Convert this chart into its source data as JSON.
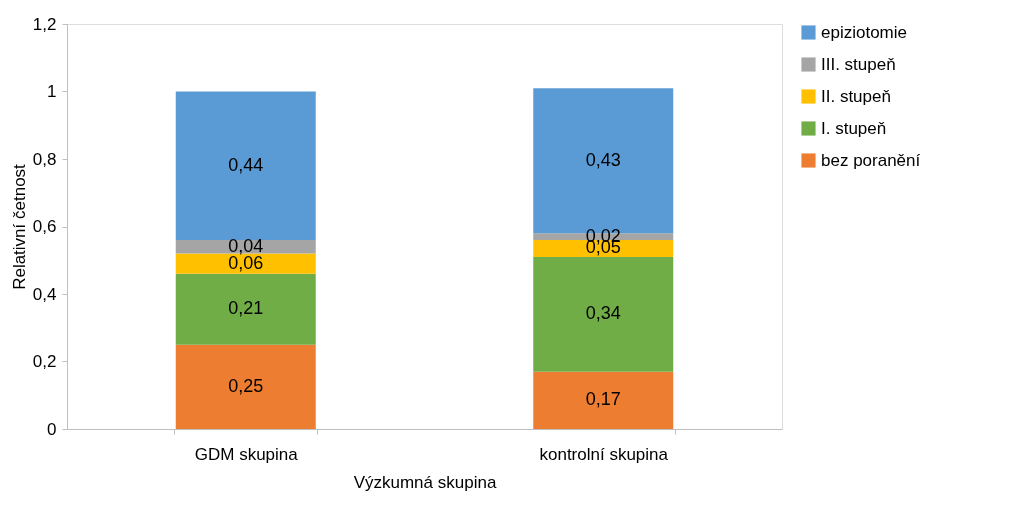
{
  "chart_data": {
    "type": "bar",
    "stacked": true,
    "xlabel": "Výzkumná skupina",
    "ylabel": "Relativní četnost",
    "categories": [
      "GDM skupina",
      "kontrolní skupina"
    ],
    "series": [
      {
        "name": "bez poranění",
        "color": "#ed7d31",
        "values": [
          0.25,
          0.17
        ],
        "value_labels": [
          "0,25",
          "0,17"
        ]
      },
      {
        "name": "I. stupeň",
        "color": "#70ad47",
        "values": [
          0.21,
          0.34
        ],
        "value_labels": [
          "0,21",
          "0,34"
        ]
      },
      {
        "name": "II. stupeň",
        "color": "#ffc000",
        "values": [
          0.06,
          0.05
        ],
        "value_labels": [
          "0,06",
          "0,05"
        ]
      },
      {
        "name": "III. stupeň",
        "color": "#a5a5a5",
        "values": [
          0.04,
          0.02
        ],
        "value_labels": [
          "0,04",
          "0,02"
        ]
      },
      {
        "name": "epiziotomie",
        "color": "#5b9bd5",
        "values": [
          0.44,
          0.43
        ],
        "value_labels": [
          "0,44",
          "0,43"
        ]
      }
    ],
    "ylim": [
      0,
      1.2
    ],
    "yticks": [
      0,
      {
        "value": 0.2,
        "label": "0,2"
      },
      {
        "value": 0.4,
        "label": "0,4"
      },
      {
        "value": 0.6,
        "label": "0,6"
      },
      {
        "value": 0.8,
        "label": "0,8"
      },
      1,
      {
        "value": 1.2,
        "label": "1,2"
      }
    ],
    "grid": false,
    "legend": "right"
  }
}
